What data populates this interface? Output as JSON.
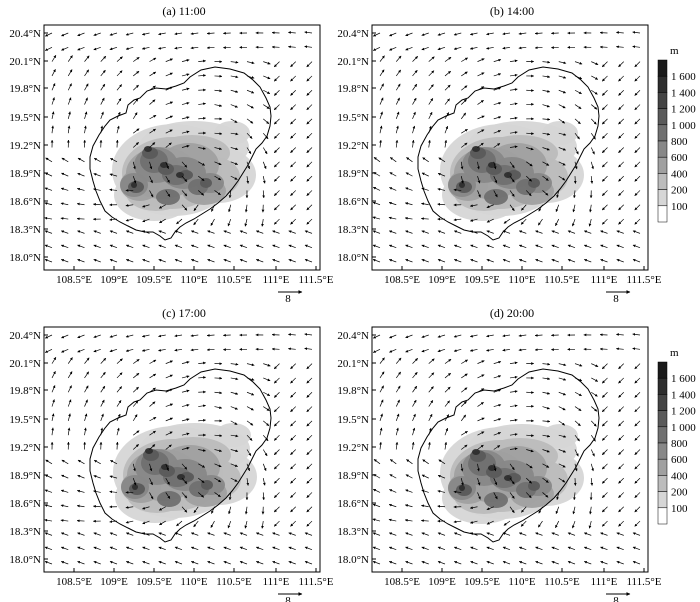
{
  "panels": [
    {
      "title": "(a) 11:00",
      "shift": [
        0,
        0
      ]
    },
    {
      "title": "(b) 14:00",
      "shift": [
        0,
        0
      ]
    },
    {
      "title": "(c) 17:00",
      "shift": [
        1,
        0
      ]
    },
    {
      "title": "(d) 20:00",
      "shift": [
        0,
        1
      ]
    }
  ],
  "axes": {
    "lat_ticks": [
      "20.4°N",
      "20.1°N",
      "19.8°N",
      "19.5°N",
      "19.2°N",
      "18.9°N",
      "18.6°N",
      "18.3°N",
      "18.0°N"
    ],
    "lon_ticks": [
      "108.5°E",
      "109°E",
      "109.5°E",
      "110°E",
      "110.5°E",
      "111°E",
      "111.5°E"
    ],
    "lat_range": [
      17.9,
      20.5
    ],
    "lon_range": [
      108.2,
      111.5
    ]
  },
  "reference_vector": {
    "label": "8"
  },
  "colorbar": {
    "unit": "m",
    "levels": [
      "1 600",
      "1 400",
      "1 200",
      "1 000",
      "800",
      "600",
      "400",
      "200",
      "100"
    ],
    "colors": [
      "#1a1a1a",
      "#2e2e2e",
      "#444444",
      "#5a5a5a",
      "#707070",
      "#888888",
      "#a0a0a0",
      "#bcbcbc",
      "#d6d6d6",
      "#ffffff"
    ]
  },
  "colors": {
    "wind_vector": "#000000",
    "coastline": "#000000"
  }
}
